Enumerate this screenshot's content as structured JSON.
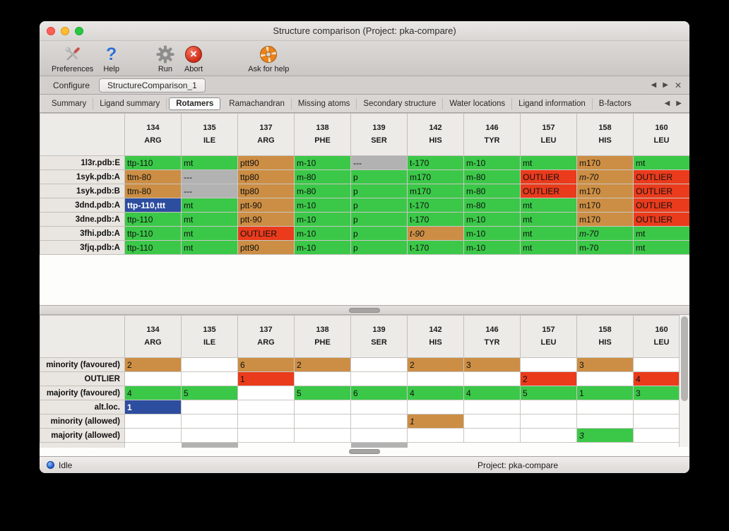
{
  "window_title": "Structure comparison (Project: pka-compare)",
  "toolbar": {
    "preferences_label": "Preferences",
    "help_label": "Help",
    "run_label": "Run",
    "abort_label": "Abort",
    "ask_label": "Ask for help"
  },
  "tabs_primary": {
    "items": [
      "Configure",
      "StructureComparison_1"
    ],
    "active": "StructureComparison_1"
  },
  "tabs_secondary": {
    "items": [
      "Summary",
      "Ligand summary",
      "Rotamers",
      "Ramachandran",
      "Missing atoms",
      "Secondary structure",
      "Water locations",
      "Ligand information",
      "B-factors"
    ],
    "active": "Rotamers"
  },
  "icons": {
    "prev": "◀",
    "next": "▶",
    "close": "✕",
    "help_glyph": "?",
    "abort_glyph": "✕"
  },
  "legend_colors": {
    "favoured": "#3bc848",
    "minority": "#cc8e44",
    "outlier": "#ea3b1c",
    "missing": "#b2b2b2",
    "selected": "#2d4d9f"
  },
  "columns": [
    {
      "num": "134",
      "res": "ARG"
    },
    {
      "num": "135",
      "res": "ILE"
    },
    {
      "num": "137",
      "res": "ARG"
    },
    {
      "num": "138",
      "res": "PHE"
    },
    {
      "num": "139",
      "res": "SER"
    },
    {
      "num": "142",
      "res": "HIS"
    },
    {
      "num": "146",
      "res": "TYR"
    },
    {
      "num": "157",
      "res": "LEU"
    },
    {
      "num": "158",
      "res": "HIS"
    },
    {
      "num": "160",
      "res": "LEU"
    }
  ],
  "top_table": {
    "rows": [
      {
        "label": "1l3r.pdb:E",
        "cells": [
          {
            "t": "ttp-110",
            "s": "ok"
          },
          {
            "t": "mt",
            "s": "ok"
          },
          {
            "t": "ptt90",
            "s": "minor"
          },
          {
            "t": "m-10",
            "s": "ok"
          },
          {
            "t": "---",
            "s": "none"
          },
          {
            "t": "t-170",
            "s": "ok"
          },
          {
            "t": "m-10",
            "s": "ok"
          },
          {
            "t": "mt",
            "s": "ok"
          },
          {
            "t": "m170",
            "s": "minor"
          },
          {
            "t": "mt",
            "s": "ok"
          }
        ]
      },
      {
        "label": "1syk.pdb:A",
        "cells": [
          {
            "t": "ttm-80",
            "s": "minor"
          },
          {
            "t": "---",
            "s": "none"
          },
          {
            "t": "ttp80",
            "s": "minor"
          },
          {
            "t": "m-80",
            "s": "ok"
          },
          {
            "t": "p",
            "s": "ok"
          },
          {
            "t": "m170",
            "s": "ok"
          },
          {
            "t": "m-80",
            "s": "ok"
          },
          {
            "t": "OUTLIER",
            "s": "outlier"
          },
          {
            "t": "m-70",
            "s": "minor",
            "i": true
          },
          {
            "t": "OUTLIER",
            "s": "outlier"
          }
        ]
      },
      {
        "label": "1syk.pdb:B",
        "cells": [
          {
            "t": "ttm-80",
            "s": "minor"
          },
          {
            "t": "---",
            "s": "none"
          },
          {
            "t": "ttp80",
            "s": "minor"
          },
          {
            "t": "m-80",
            "s": "ok"
          },
          {
            "t": "p",
            "s": "ok"
          },
          {
            "t": "m170",
            "s": "ok"
          },
          {
            "t": "m-80",
            "s": "ok"
          },
          {
            "t": "OUTLIER",
            "s": "outlier"
          },
          {
            "t": "m170",
            "s": "minor"
          },
          {
            "t": "OUTLIER",
            "s": "outlier"
          }
        ]
      },
      {
        "label": "3dnd.pdb:A",
        "cells": [
          {
            "t": "ttp-110,ttt",
            "s": "selected"
          },
          {
            "t": "mt",
            "s": "ok"
          },
          {
            "t": "ptt-90",
            "s": "minor"
          },
          {
            "t": "m-10",
            "s": "ok"
          },
          {
            "t": "p",
            "s": "ok"
          },
          {
            "t": "t-170",
            "s": "ok"
          },
          {
            "t": "m-80",
            "s": "ok"
          },
          {
            "t": "mt",
            "s": "ok"
          },
          {
            "t": "m170",
            "s": "minor"
          },
          {
            "t": "OUTLIER",
            "s": "outlier"
          }
        ]
      },
      {
        "label": "3dne.pdb:A",
        "cells": [
          {
            "t": "ttp-110",
            "s": "ok"
          },
          {
            "t": "mt",
            "s": "ok"
          },
          {
            "t": "ptt-90",
            "s": "minor"
          },
          {
            "t": "m-10",
            "s": "ok"
          },
          {
            "t": "p",
            "s": "ok"
          },
          {
            "t": "t-170",
            "s": "ok"
          },
          {
            "t": "m-10",
            "s": "ok"
          },
          {
            "t": "mt",
            "s": "ok"
          },
          {
            "t": "m170",
            "s": "minor"
          },
          {
            "t": "OUTLIER",
            "s": "outlier"
          }
        ]
      },
      {
        "label": "3fhi.pdb:A",
        "cells": [
          {
            "t": "ttp-110",
            "s": "ok"
          },
          {
            "t": "mt",
            "s": "ok"
          },
          {
            "t": "OUTLIER",
            "s": "outlier"
          },
          {
            "t": "m-10",
            "s": "ok"
          },
          {
            "t": "p",
            "s": "ok"
          },
          {
            "t": "t-90",
            "s": "minor",
            "i": true
          },
          {
            "t": "m-10",
            "s": "ok"
          },
          {
            "t": "mt",
            "s": "ok"
          },
          {
            "t": "m-70",
            "s": "ok",
            "i": true
          },
          {
            "t": "mt",
            "s": "ok"
          }
        ]
      },
      {
        "label": "3fjq.pdb:A",
        "cells": [
          {
            "t": "ttp-110",
            "s": "ok"
          },
          {
            "t": "mt",
            "s": "ok"
          },
          {
            "t": "ptt90",
            "s": "minor"
          },
          {
            "t": "m-10",
            "s": "ok"
          },
          {
            "t": "p",
            "s": "ok"
          },
          {
            "t": "t-170",
            "s": "ok"
          },
          {
            "t": "m-10",
            "s": "ok"
          },
          {
            "t": "mt",
            "s": "ok"
          },
          {
            "t": "m-70",
            "s": "ok"
          },
          {
            "t": "mt",
            "s": "ok"
          }
        ]
      }
    ]
  },
  "bottom_table": {
    "rows": [
      {
        "label": "minority (favoured)",
        "cells": [
          {
            "t": "2",
            "s": "minor"
          },
          {
            "t": "",
            "s": ""
          },
          {
            "t": "6",
            "s": "minor"
          },
          {
            "t": "2",
            "s": "minor"
          },
          {
            "t": "",
            "s": ""
          },
          {
            "t": "2",
            "s": "minor"
          },
          {
            "t": "3",
            "s": "minor"
          },
          {
            "t": "",
            "s": ""
          },
          {
            "t": "3",
            "s": "minor"
          },
          {
            "t": "",
            "s": ""
          }
        ]
      },
      {
        "label": "OUTLIER",
        "cells": [
          {
            "t": "",
            "s": ""
          },
          {
            "t": "",
            "s": ""
          },
          {
            "t": "1",
            "s": "outlier"
          },
          {
            "t": "",
            "s": ""
          },
          {
            "t": "",
            "s": ""
          },
          {
            "t": "",
            "s": ""
          },
          {
            "t": "",
            "s": ""
          },
          {
            "t": "2",
            "s": "outlier"
          },
          {
            "t": "",
            "s": ""
          },
          {
            "t": "4",
            "s": "outlier"
          }
        ]
      },
      {
        "label": "majority (favoured)",
        "cells": [
          {
            "t": "4",
            "s": "ok"
          },
          {
            "t": "5",
            "s": "ok"
          },
          {
            "t": "",
            "s": ""
          },
          {
            "t": "5",
            "s": "ok"
          },
          {
            "t": "6",
            "s": "ok"
          },
          {
            "t": "4",
            "s": "ok"
          },
          {
            "t": "4",
            "s": "ok"
          },
          {
            "t": "5",
            "s": "ok"
          },
          {
            "t": "1",
            "s": "ok"
          },
          {
            "t": "3",
            "s": "ok"
          }
        ]
      },
      {
        "label": "alt.loc.",
        "cells": [
          {
            "t": "1",
            "s": "selected"
          },
          {
            "t": "",
            "s": ""
          },
          {
            "t": "",
            "s": ""
          },
          {
            "t": "",
            "s": ""
          },
          {
            "t": "",
            "s": ""
          },
          {
            "t": "",
            "s": ""
          },
          {
            "t": "",
            "s": ""
          },
          {
            "t": "",
            "s": ""
          },
          {
            "t": "",
            "s": ""
          },
          {
            "t": "",
            "s": ""
          }
        ]
      },
      {
        "label": "minority (allowed)",
        "cells": [
          {
            "t": "",
            "s": ""
          },
          {
            "t": "",
            "s": ""
          },
          {
            "t": "",
            "s": ""
          },
          {
            "t": "",
            "s": ""
          },
          {
            "t": "",
            "s": ""
          },
          {
            "t": "1",
            "s": "minor",
            "i": true
          },
          {
            "t": "",
            "s": ""
          },
          {
            "t": "",
            "s": ""
          },
          {
            "t": "",
            "s": ""
          },
          {
            "t": "",
            "s": ""
          }
        ]
      },
      {
        "label": "majority (allowed)",
        "cells": [
          {
            "t": "",
            "s": ""
          },
          {
            "t": "",
            "s": ""
          },
          {
            "t": "",
            "s": ""
          },
          {
            "t": "",
            "s": ""
          },
          {
            "t": "",
            "s": ""
          },
          {
            "t": "",
            "s": ""
          },
          {
            "t": "",
            "s": ""
          },
          {
            "t": "",
            "s": ""
          },
          {
            "t": "3",
            "s": "ok",
            "i": true
          },
          {
            "t": "",
            "s": ""
          }
        ]
      }
    ],
    "partial_gray_columns": [
      1,
      4
    ]
  },
  "status": {
    "state": "Idle",
    "project": "Project: pka-compare"
  }
}
